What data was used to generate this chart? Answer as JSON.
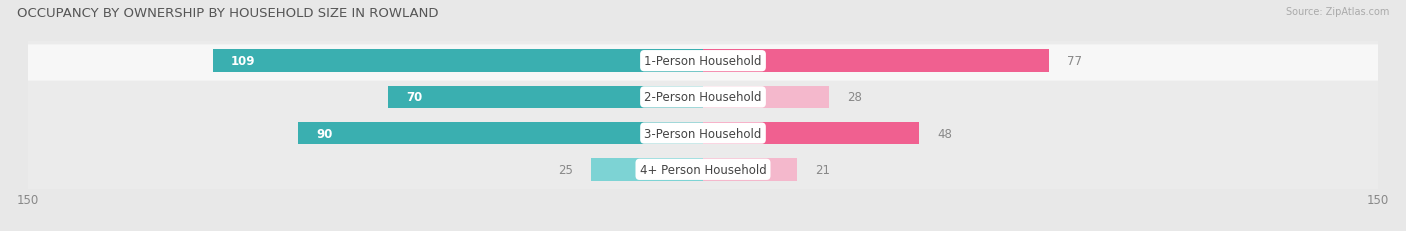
{
  "title": "OCCUPANCY BY OWNERSHIP BY HOUSEHOLD SIZE IN ROWLAND",
  "source": "Source: ZipAtlas.com",
  "categories": [
    "1-Person Household",
    "2-Person Household",
    "3-Person Household",
    "4+ Person Household"
  ],
  "owner_values": [
    109,
    70,
    90,
    25
  ],
  "renter_values": [
    77,
    28,
    48,
    21
  ],
  "owner_color_large": "#3AAFB0",
  "owner_color_small": "#7DD3D4",
  "renter_color_large": "#F06090",
  "renter_color_small": "#F4B8CC",
  "axis_max": 150,
  "bar_height": 0.62,
  "background_color": "#e8e8e8",
  "row_bg_light": "#f7f7f7",
  "row_bg_dark": "#ebebeb",
  "label_fontsize": 8.5,
  "title_fontsize": 9.5,
  "source_fontsize": 7,
  "legend_fontsize": 8.5,
  "owner_label_inside": [
    true,
    true,
    true,
    false
  ],
  "owner_label_color_inside": "#ffffff",
  "owner_label_color_outside": "#888888",
  "renter_label_color": "#888888"
}
